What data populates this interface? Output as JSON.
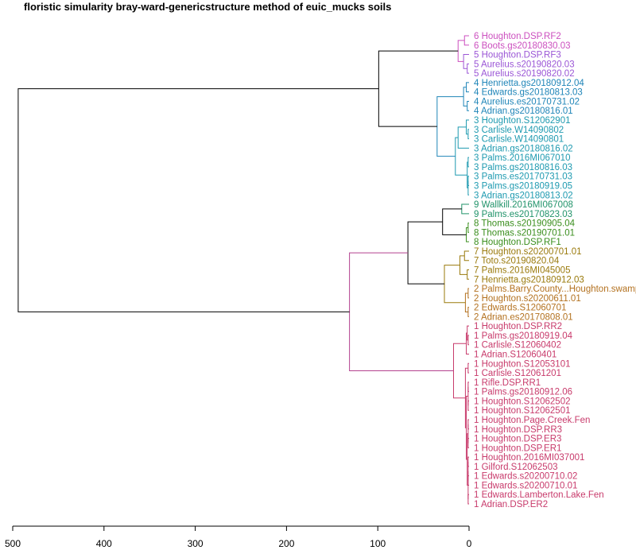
{
  "chart_data": {
    "type": "dendrogram",
    "title": "floristic simularity bray-ward-genericstructure  method of euic_mucks soils",
    "orientation": "horizontal",
    "axis": {
      "ticks": [
        500,
        400,
        300,
        200,
        100,
        0
      ],
      "range": [
        500,
        0
      ]
    },
    "colors": {
      "trunk": "#000000",
      "6": "#cc4fbf",
      "5": "#9b56d6",
      "4": "#1f85b8",
      "3": "#1e9ab0",
      "9": "#21936a",
      "8": "#3a8e1d",
      "7": "#9a7a0c",
      "2": "#b3711f",
      "1": "#c83a6b",
      "top-link": "#cc4fbf",
      "bottom-link": "#b4428f"
    },
    "leaves": [
      {
        "label": "6 Houghton.DSP.RF2",
        "group": "6"
      },
      {
        "label": "6 Boots.gs20180830.03",
        "group": "6"
      },
      {
        "label": "5 Houghton.DSP.RF3",
        "group": "5"
      },
      {
        "label": "5 Aurelius.s20190820.03",
        "group": "5"
      },
      {
        "label": "5 Aurelius.s20190820.02",
        "group": "5"
      },
      {
        "label": "4 Henrietta.gs20180912.04",
        "group": "4"
      },
      {
        "label": "4 Edwards.gs20180813.03",
        "group": "4"
      },
      {
        "label": "4 Aurelius.es20170731.02",
        "group": "4"
      },
      {
        "label": "4 Adrian.gs20180816.01",
        "group": "4"
      },
      {
        "label": "3 Houghton.S12062901",
        "group": "3"
      },
      {
        "label": "3 Carlisle.W14090802",
        "group": "3"
      },
      {
        "label": "3 Carlisle.W14090801",
        "group": "3"
      },
      {
        "label": "3 Adrian.gs20180816.02",
        "group": "3"
      },
      {
        "label": "3 Palms.2016MI067010",
        "group": "3"
      },
      {
        "label": "3 Palms.gs20180816.03",
        "group": "3"
      },
      {
        "label": "3 Palms.es20170731.03",
        "group": "3"
      },
      {
        "label": "3 Palms.gs20180919.05",
        "group": "3"
      },
      {
        "label": "3 Adrian.gs20180813.02",
        "group": "3"
      },
      {
        "label": "9 Wallkill.2016MI067008",
        "group": "9"
      },
      {
        "label": "9 Palms.es20170823.03",
        "group": "9"
      },
      {
        "label": "8 Thomas.s20190905.04",
        "group": "8"
      },
      {
        "label": "8 Thomas.s20190701.01",
        "group": "8"
      },
      {
        "label": "8 Houghton.DSP.RF1",
        "group": "8"
      },
      {
        "label": "7 Houghton.s20200701.01",
        "group": "7"
      },
      {
        "label": "7 Toto.s20190820.04",
        "group": "7"
      },
      {
        "label": "7 Palms.2016MI045005",
        "group": "7"
      },
      {
        "label": "7 Henrietta.gs20180912.03",
        "group": "7"
      },
      {
        "label": "2 Palms.Barry.County...Houghton.swamp",
        "group": "2"
      },
      {
        "label": "2 Houghton.s20200611.01",
        "group": "2"
      },
      {
        "label": "2 Edwards.S12060701",
        "group": "2"
      },
      {
        "label": "2 Adrian.es20170808.01",
        "group": "2"
      },
      {
        "label": "1 Houghton.DSP.RR2",
        "group": "1"
      },
      {
        "label": "1 Palms.gs20180919.04",
        "group": "1"
      },
      {
        "label": "1 Carlisle.S12060402",
        "group": "1"
      },
      {
        "label": "1 Adrian.S12060401",
        "group": "1"
      },
      {
        "label": "1 Houghton.S12053101",
        "group": "1"
      },
      {
        "label": "1 Carlisle.S12061201",
        "group": "1"
      },
      {
        "label": "1 Rifle.DSP.RR1",
        "group": "1"
      },
      {
        "label": "1 Palms.gs20180912.06",
        "group": "1"
      },
      {
        "label": "1 Houghton.S12062502",
        "group": "1"
      },
      {
        "label": "1 Houghton.S12062501",
        "group": "1"
      },
      {
        "label": "1 Houghton.Page.Creek.Fen",
        "group": "1"
      },
      {
        "label": "1 Houghton.DSP.RR3",
        "group": "1"
      },
      {
        "label": "1 Houghton.DSP.ER3",
        "group": "1"
      },
      {
        "label": "1 Houghton.DSP.ER1",
        "group": "1"
      },
      {
        "label": "1 Houghton.2016MI037001",
        "group": "1"
      },
      {
        "label": "1 Gilford.S12062503",
        "group": "1"
      },
      {
        "label": "1 Edwards.s20200710.02",
        "group": "1"
      },
      {
        "label": "1 Edwards.s20200710.01",
        "group": "1"
      },
      {
        "label": "1 Edwards.Lamberton.Lake.Fen",
        "group": "1"
      },
      {
        "label": "1 Adrian.DSP.ER2",
        "group": "1"
      }
    ],
    "merges": [
      {
        "left": "L0",
        "right": "L1",
        "height": 5,
        "color": "6",
        "id": "m6"
      },
      {
        "left": "L3",
        "right": "L4",
        "height": 2,
        "color": "5",
        "id": "m5a"
      },
      {
        "left": "L2",
        "right": "m5a",
        "height": 6,
        "color": "5",
        "id": "m5"
      },
      {
        "left": "m6",
        "right": "m5",
        "height": 12,
        "color": "6",
        "id": "m65"
      },
      {
        "left": "L5",
        "right": "L6",
        "height": 3,
        "color": "4",
        "id": "m4a"
      },
      {
        "left": "L7",
        "right": "L8",
        "height": 2,
        "color": "4",
        "id": "m4b"
      },
      {
        "left": "m4a",
        "right": "m4b",
        "height": 6,
        "color": "4",
        "id": "m4"
      },
      {
        "left": "L10",
        "right": "L11",
        "height": 1,
        "color": "3",
        "id": "m3a"
      },
      {
        "left": "L9",
        "right": "m3a",
        "height": 3,
        "color": "3",
        "id": "m3b"
      },
      {
        "left": "m3b",
        "right": "L12",
        "height": 12,
        "color": "3",
        "id": "m3c"
      },
      {
        "left": "L13",
        "right": "L14",
        "height": 1,
        "color": "3",
        "id": "m3d"
      },
      {
        "left": "L15",
        "right": "L16",
        "height": 1,
        "color": "3",
        "id": "m3e"
      },
      {
        "left": "m3e",
        "right": "L17",
        "height": 1,
        "color": "3",
        "id": "m3f"
      },
      {
        "left": "m3d",
        "right": "m3f",
        "height": 2,
        "color": "3",
        "id": "m3g"
      },
      {
        "left": "m3c",
        "right": "m3g",
        "height": 15,
        "color": "3",
        "id": "m3"
      },
      {
        "left": "m4",
        "right": "m3",
        "height": 35,
        "color": "4",
        "id": "m43"
      },
      {
        "left": "m65",
        "right": "m43",
        "height": 99,
        "color": "trunk",
        "id": "mTop"
      },
      {
        "left": "L18",
        "right": "L19",
        "height": 8,
        "color": "9",
        "id": "m9"
      },
      {
        "left": "L20",
        "right": "L21",
        "height": 1,
        "color": "8",
        "id": "m8a"
      },
      {
        "left": "m8a",
        "right": "L22",
        "height": 3,
        "color": "8",
        "id": "m8b"
      },
      {
        "left": "m9",
        "right": "m8b",
        "height": 29,
        "color": "trunk",
        "id": "m98"
      },
      {
        "left": "L23",
        "right": "L24",
        "height": 5,
        "color": "7",
        "id": "m7a"
      },
      {
        "left": "L25",
        "right": "L26",
        "height": 2,
        "color": "7",
        "id": "m7b"
      },
      {
        "left": "m7a",
        "right": "m7b",
        "height": 10,
        "color": "7",
        "id": "m7"
      },
      {
        "left": "L27",
        "right": "L28",
        "height": 1,
        "color": "2",
        "id": "m2a"
      },
      {
        "left": "L29",
        "right": "L30",
        "height": 1,
        "color": "2",
        "id": "m2b"
      },
      {
        "left": "m2a",
        "right": "m2b",
        "height": 4,
        "color": "2",
        "id": "m2"
      },
      {
        "left": "m7",
        "right": "m2",
        "height": 27,
        "color": "7",
        "id": "m72"
      },
      {
        "left": "m98",
        "right": "m72",
        "height": 67,
        "color": "trunk",
        "id": "mMid"
      },
      {
        "left": "L32",
        "right": "L33",
        "height": 1,
        "color": "1",
        "id": "m1a"
      },
      {
        "left": "L31",
        "right": "m1a",
        "height": 2,
        "color": "1",
        "id": "m1b"
      },
      {
        "left": "m1b",
        "right": "L34",
        "height": 3,
        "color": "1",
        "id": "m1c"
      },
      {
        "left": "L35",
        "right": "L36",
        "height": 1,
        "color": "1",
        "id": "m1d"
      },
      {
        "left": "L37",
        "right": "L38",
        "height": 1,
        "color": "1",
        "id": "m1e"
      },
      {
        "left": "L39",
        "right": "L40",
        "height": 1,
        "color": "1",
        "id": "m1f"
      },
      {
        "left": "m1e",
        "right": "m1f",
        "height": 1,
        "color": "1",
        "id": "m1g"
      },
      {
        "left": "L41",
        "right": "L42",
        "height": 1,
        "color": "1",
        "id": "m1h"
      },
      {
        "left": "L43",
        "right": "L44",
        "height": 1,
        "color": "1",
        "id": "m1i"
      },
      {
        "left": "m1h",
        "right": "m1i",
        "height": 1,
        "color": "1",
        "id": "m1j"
      },
      {
        "left": "L45",
        "right": "L46",
        "height": 1,
        "color": "1",
        "id": "m1k"
      },
      {
        "left": "L47",
        "right": "L48",
        "height": 1,
        "color": "1",
        "id": "m1l"
      },
      {
        "left": "m1k",
        "right": "m1l",
        "height": 1,
        "color": "1",
        "id": "m1m"
      },
      {
        "left": "L49",
        "right": "L50",
        "height": 1,
        "color": "1",
        "id": "m1n"
      },
      {
        "left": "m1m",
        "right": "m1n",
        "height": 1,
        "color": "1",
        "id": "m1o"
      },
      {
        "left": "m1j",
        "right": "m1o",
        "height": 2,
        "color": "1",
        "id": "m1p"
      },
      {
        "left": "m1g",
        "right": "m1p",
        "height": 3,
        "color": "1",
        "id": "m1q"
      },
      {
        "left": "m1d",
        "right": "m1q",
        "height": 4,
        "color": "1",
        "id": "m1r"
      },
      {
        "left": "m1c",
        "right": "m1r",
        "height": 17,
        "color": "1",
        "id": "m1"
      },
      {
        "left": "mMid",
        "right": "m1",
        "height": 131,
        "color": "bottom-link",
        "id": "mBot"
      },
      {
        "left": "mTop",
        "right": "mBot",
        "height": 494,
        "color": "trunk",
        "id": "root"
      }
    ]
  }
}
